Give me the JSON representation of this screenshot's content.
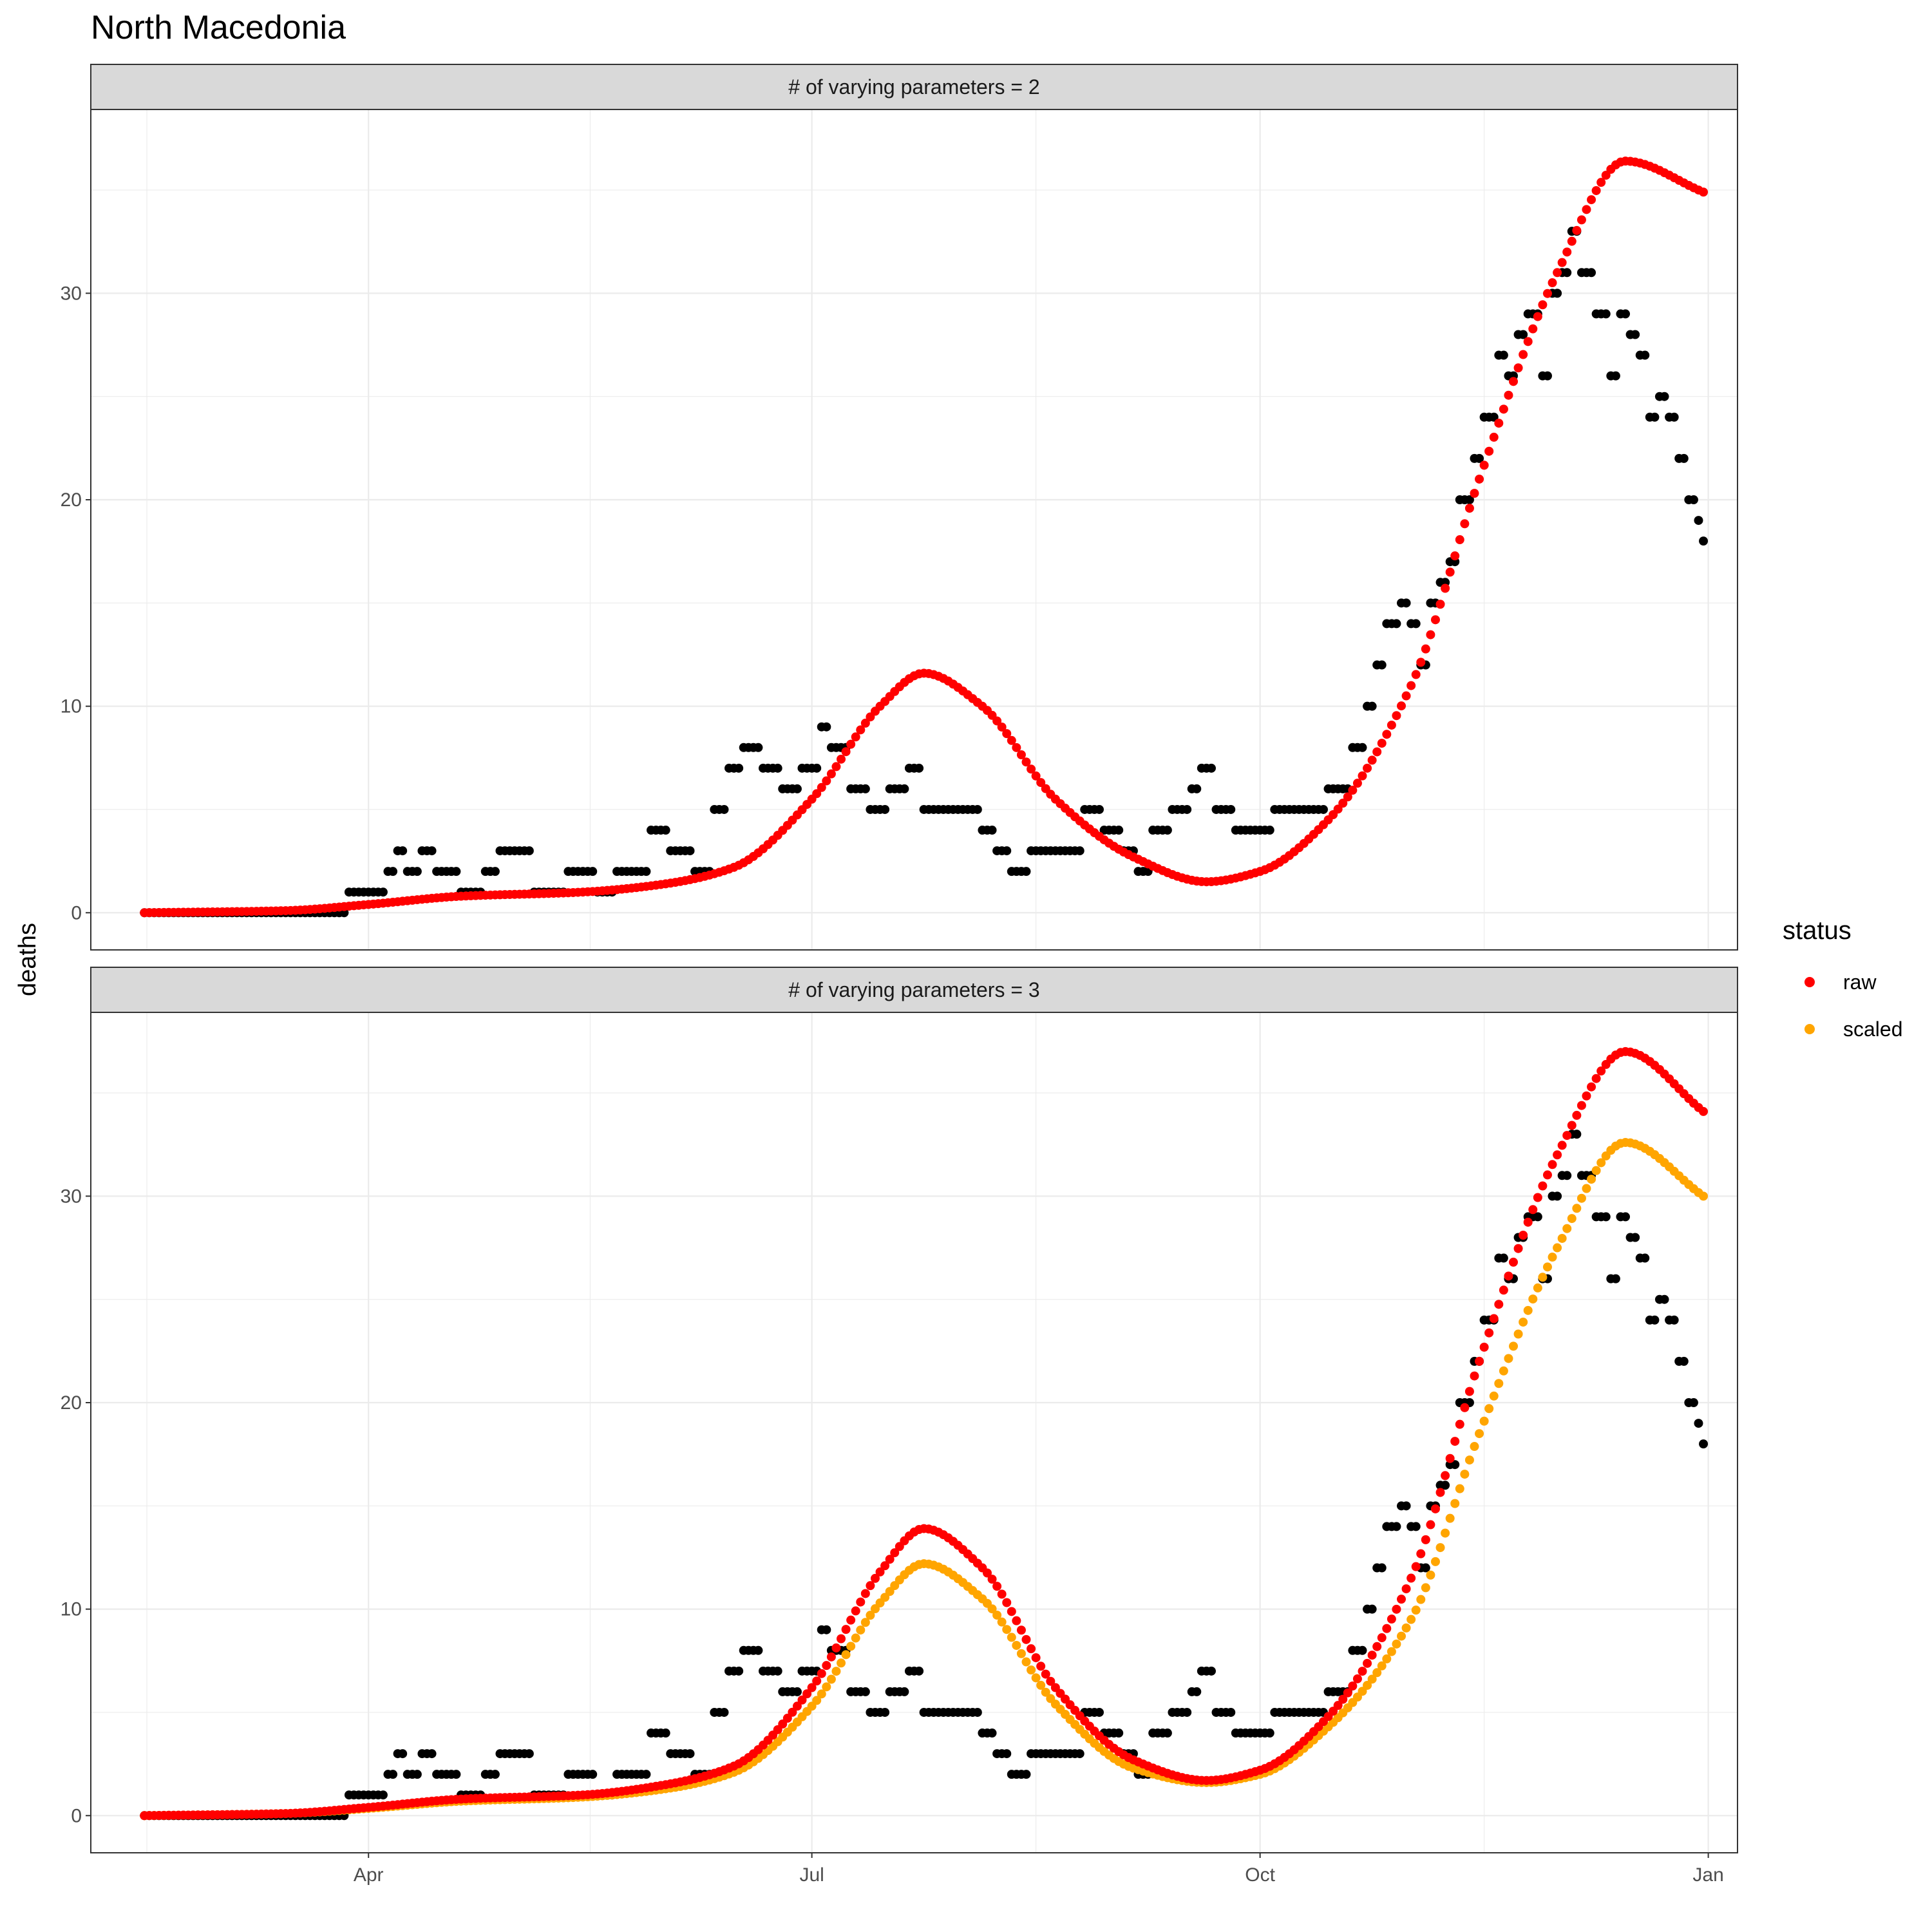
{
  "chart_data": {
    "type": "scatter",
    "title": "North Macedonia",
    "ylabel": "deaths",
    "x_ticks": [
      {
        "date": "2020-04-01",
        "label": "Apr"
      },
      {
        "date": "2020-07-01",
        "label": "Jul"
      },
      {
        "date": "2020-10-01",
        "label": "Oct"
      },
      {
        "date": "2021-01-01",
        "label": "Jan"
      }
    ],
    "y_ticks": [
      0,
      10,
      20,
      30
    ],
    "xlim": [
      "2020-02-04",
      "2021-01-07"
    ],
    "legend": {
      "title": "status",
      "position": "right",
      "entries": [
        {
          "label": "raw",
          "color": "#ff0000"
        },
        {
          "label": "scaled",
          "color": "#ffa500"
        }
      ]
    },
    "observed_color": "#000000",
    "observed": {
      "start": "2020-02-15",
      "end": "2020-12-31",
      "points": [
        [
          "2020-03-28",
          1
        ],
        [
          "2020-04-05",
          2
        ],
        [
          "2020-04-07",
          3
        ],
        [
          "2020-04-09",
          2
        ],
        [
          "2020-04-12",
          3
        ],
        [
          "2020-04-15",
          2
        ],
        [
          "2020-04-20",
          1
        ],
        [
          "2020-04-25",
          2
        ],
        [
          "2020-04-28",
          3
        ],
        [
          "2020-05-05",
          1
        ],
        [
          "2020-05-12",
          2
        ],
        [
          "2020-05-18",
          1
        ],
        [
          "2020-05-22",
          2
        ],
        [
          "2020-05-29",
          4
        ],
        [
          "2020-06-02",
          3
        ],
        [
          "2020-06-07",
          2
        ],
        [
          "2020-06-11",
          5
        ],
        [
          "2020-06-14",
          7
        ],
        [
          "2020-06-17",
          8
        ],
        [
          "2020-06-21",
          7
        ],
        [
          "2020-06-25",
          6
        ],
        [
          "2020-06-29",
          7
        ],
        [
          "2020-07-03",
          9
        ],
        [
          "2020-07-05",
          8
        ],
        [
          "2020-07-09",
          6
        ],
        [
          "2020-07-13",
          5
        ],
        [
          "2020-07-17",
          6
        ],
        [
          "2020-07-21",
          7
        ],
        [
          "2020-07-24",
          5
        ],
        [
          "2020-07-31",
          5
        ],
        [
          "2020-08-05",
          4
        ],
        [
          "2020-08-08",
          3
        ],
        [
          "2020-08-11",
          2
        ],
        [
          "2020-08-15",
          3
        ],
        [
          "2020-08-22",
          3
        ],
        [
          "2020-08-26",
          5
        ],
        [
          "2020-08-30",
          4
        ],
        [
          "2020-09-03",
          3
        ],
        [
          "2020-09-06",
          2
        ],
        [
          "2020-09-09",
          4
        ],
        [
          "2020-09-13",
          5
        ],
        [
          "2020-09-17",
          6
        ],
        [
          "2020-09-19",
          7
        ],
        [
          "2020-09-22",
          5
        ],
        [
          "2020-09-26",
          4
        ],
        [
          "2020-10-04",
          5
        ],
        [
          "2020-10-11",
          5
        ],
        [
          "2020-10-15",
          6
        ],
        [
          "2020-10-20",
          8
        ],
        [
          "2020-10-23",
          10
        ],
        [
          "2020-10-25",
          12
        ],
        [
          "2020-10-27",
          14
        ],
        [
          "2020-10-30",
          15
        ],
        [
          "2020-11-01",
          14
        ],
        [
          "2020-11-03",
          12
        ],
        [
          "2020-11-05",
          15
        ],
        [
          "2020-11-07",
          16
        ],
        [
          "2020-11-09",
          17
        ],
        [
          "2020-11-11",
          20
        ],
        [
          "2020-11-14",
          22
        ],
        [
          "2020-11-16",
          24
        ],
        [
          "2020-11-19",
          27
        ],
        [
          "2020-11-21",
          26
        ],
        [
          "2020-11-23",
          28
        ],
        [
          "2020-11-25",
          29
        ],
        [
          "2020-11-28",
          26
        ],
        [
          "2020-11-30",
          30
        ],
        [
          "2020-12-02",
          31
        ],
        [
          "2020-12-04",
          33
        ],
        [
          "2020-12-06",
          31
        ],
        [
          "2020-12-09",
          29
        ],
        [
          "2020-12-12",
          26
        ],
        [
          "2020-12-14",
          29
        ],
        [
          "2020-12-16",
          28
        ],
        [
          "2020-12-18",
          27
        ],
        [
          "2020-12-20",
          24
        ],
        [
          "2020-12-22",
          25
        ],
        [
          "2020-12-24",
          24
        ],
        [
          "2020-12-26",
          22
        ],
        [
          "2020-12-28",
          20
        ],
        [
          "2020-12-30",
          19
        ],
        [
          "2020-12-31",
          18
        ]
      ]
    },
    "panels": [
      {
        "strip": "# of varying parameters = 2",
        "ylim": [
          -1.8,
          38.9
        ],
        "series": [
          {
            "name": "raw",
            "start": "2020-02-15",
            "end": "2020-12-31",
            "knots": [
              [
                "2020-02-15",
                0
              ],
              [
                "2020-03-15",
                0.1
              ],
              [
                "2020-04-01",
                0.4
              ],
              [
                "2020-04-20",
                0.8
              ],
              [
                "2020-05-15",
                1.0
              ],
              [
                "2020-06-01",
                1.4
              ],
              [
                "2020-06-15",
                2.2
              ],
              [
                "2020-07-01",
                5.5
              ],
              [
                "2020-07-15",
                10.0
              ],
              [
                "2020-07-24",
                11.6
              ],
              [
                "2020-08-05",
                10.0
              ],
              [
                "2020-08-20",
                5.5
              ],
              [
                "2020-09-05",
                2.7
              ],
              [
                "2020-09-20",
                1.5
              ],
              [
                "2020-10-01",
                2.0
              ],
              [
                "2020-10-15",
                4.5
              ],
              [
                "2020-11-01",
                11.0
              ],
              [
                "2020-11-15",
                21.0
              ],
              [
                "2020-12-01",
                31.0
              ],
              [
                "2020-12-15",
                36.4
              ],
              [
                "2020-12-31",
                34.9
              ]
            ]
          }
        ]
      },
      {
        "strip": "# of varying parameters = 3",
        "ylim": [
          -1.8,
          38.9
        ],
        "series": [
          {
            "name": "raw",
            "start": "2020-02-15",
            "end": "2020-12-31",
            "knots": [
              [
                "2020-02-15",
                0
              ],
              [
                "2020-03-15",
                0.1
              ],
              [
                "2020-04-01",
                0.4
              ],
              [
                "2020-04-20",
                0.8
              ],
              [
                "2020-05-15",
                1.0
              ],
              [
                "2020-06-01",
                1.5
              ],
              [
                "2020-06-15",
                2.4
              ],
              [
                "2020-07-01",
                6.2
              ],
              [
                "2020-07-15",
                11.8
              ],
              [
                "2020-07-24",
                13.9
              ],
              [
                "2020-08-05",
                12.0
              ],
              [
                "2020-08-20",
                6.2
              ],
              [
                "2020-09-05",
                2.7
              ],
              [
                "2020-09-20",
                1.7
              ],
              [
                "2020-10-01",
                2.2
              ],
              [
                "2020-10-15",
                4.8
              ],
              [
                "2020-11-01",
                11.5
              ],
              [
                "2020-11-15",
                22.0
              ],
              [
                "2020-12-01",
                32.0
              ],
              [
                "2020-12-15",
                37.0
              ],
              [
                "2020-12-31",
                34.1
              ]
            ]
          },
          {
            "name": "scaled",
            "start": "2020-02-15",
            "end": "2020-12-31",
            "knots": [
              [
                "2020-02-15",
                0
              ],
              [
                "2020-03-15",
                0.1
              ],
              [
                "2020-04-01",
                0.35
              ],
              [
                "2020-04-20",
                0.7
              ],
              [
                "2020-05-15",
                0.9
              ],
              [
                "2020-06-01",
                1.3
              ],
              [
                "2020-06-15",
                2.1
              ],
              [
                "2020-07-01",
                5.3
              ],
              [
                "2020-07-15",
                10.3
              ],
              [
                "2020-07-24",
                12.2
              ],
              [
                "2020-08-05",
                10.5
              ],
              [
                "2020-08-20",
                5.4
              ],
              [
                "2020-09-05",
                2.3
              ],
              [
                "2020-09-20",
                1.6
              ],
              [
                "2020-10-01",
                2.0
              ],
              [
                "2020-10-15",
                4.3
              ],
              [
                "2020-11-01",
                9.5
              ],
              [
                "2020-11-15",
                18.5
              ],
              [
                "2020-12-01",
                27.5
              ],
              [
                "2020-12-15",
                32.6
              ],
              [
                "2020-12-31",
                30.0
              ]
            ]
          }
        ]
      }
    ]
  }
}
